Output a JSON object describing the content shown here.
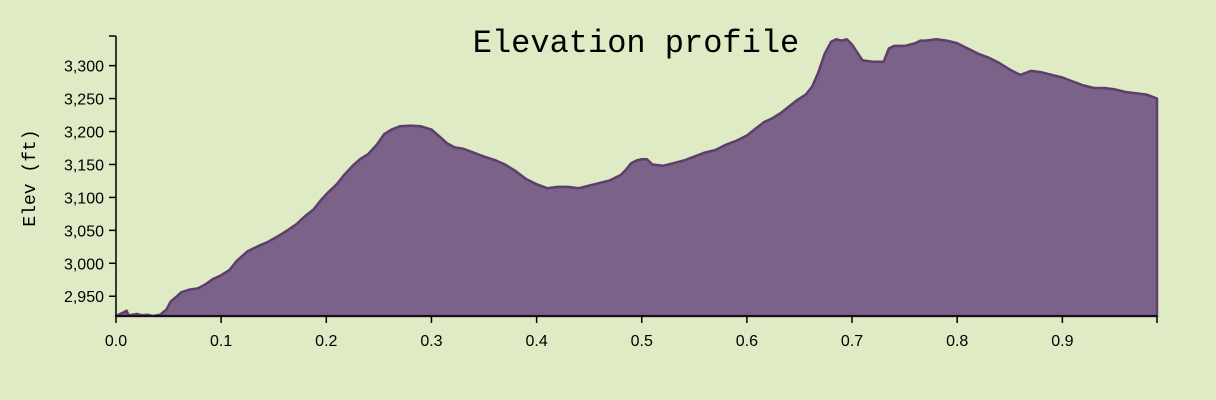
{
  "chart_data": {
    "type": "area",
    "title": "Elevation profile",
    "xlabel": "",
    "ylabel": "Elev (ft)",
    "xlim": [
      0,
      0.99
    ],
    "ylim": [
      2920,
      3345
    ],
    "x_ticks": [
      "0.0",
      "0.1",
      "0.2",
      "0.3",
      "0.4",
      "0.5",
      "0.6",
      "0.7",
      "0.8",
      "0.9"
    ],
    "y_ticks": [
      "2,950",
      "3,000",
      "3,050",
      "3,100",
      "3,150",
      "3,200",
      "3,250",
      "3,300"
    ],
    "grid": false,
    "fill_color": "#7b6289",
    "line_color": "#5c3f6b",
    "background_color": "#deebc4",
    "series": [
      {
        "x": [
          0.0,
          0.008,
          0.01,
          0.012,
          0.02,
          0.025,
          0.03,
          0.035,
          0.042,
          0.048,
          0.052,
          0.058,
          0.062,
          0.07,
          0.078,
          0.085,
          0.092,
          0.1,
          0.108,
          0.115,
          0.125,
          0.135,
          0.145,
          0.155,
          0.163,
          0.172,
          0.18,
          0.188,
          0.195,
          0.202,
          0.21,
          0.218,
          0.225,
          0.232,
          0.24,
          0.248,
          0.255,
          0.262,
          0.27,
          0.28,
          0.29,
          0.3,
          0.308,
          0.315,
          0.322,
          0.33,
          0.34,
          0.35,
          0.36,
          0.37,
          0.38,
          0.39,
          0.4,
          0.41,
          0.42,
          0.43,
          0.44,
          0.45,
          0.46,
          0.47,
          0.48,
          0.485,
          0.49,
          0.495,
          0.5,
          0.505,
          0.51,
          0.52,
          0.53,
          0.54,
          0.55,
          0.56,
          0.57,
          0.58,
          0.59,
          0.6,
          0.608,
          0.616,
          0.624,
          0.632,
          0.64,
          0.648,
          0.656,
          0.662,
          0.668,
          0.674,
          0.68,
          0.685,
          0.69,
          0.695,
          0.7,
          0.705,
          0.71,
          0.72,
          0.73,
          0.735,
          0.74,
          0.75,
          0.76,
          0.765,
          0.77,
          0.78,
          0.79,
          0.8,
          0.81,
          0.82,
          0.83,
          0.84,
          0.85,
          0.86,
          0.87,
          0.88,
          0.89,
          0.9,
          0.91,
          0.92,
          0.93,
          0.94,
          0.95,
          0.96,
          0.97,
          0.98,
          0.99
        ],
        "y": [
          2920,
          2926,
          2928,
          2921,
          2923,
          2921,
          2922,
          2920,
          2922,
          2930,
          2942,
          2950,
          2956,
          2960,
          2962,
          2968,
          2976,
          2982,
          2990,
          3004,
          3018,
          3026,
          3033,
          3042,
          3050,
          3060,
          3072,
          3082,
          3096,
          3108,
          3120,
          3136,
          3148,
          3158,
          3166,
          3180,
          3196,
          3203,
          3208,
          3209,
          3208,
          3203,
          3192,
          3182,
          3176,
          3174,
          3168,
          3162,
          3157,
          3150,
          3140,
          3128,
          3120,
          3114,
          3116,
          3116,
          3114,
          3118,
          3122,
          3126,
          3134,
          3142,
          3152,
          3156,
          3158,
          3158,
          3150,
          3148,
          3152,
          3156,
          3162,
          3168,
          3172,
          3180,
          3186,
          3194,
          3204,
          3214,
          3220,
          3228,
          3238,
          3248,
          3256,
          3268,
          3290,
          3318,
          3336,
          3340,
          3338,
          3340,
          3332,
          3320,
          3308,
          3306,
          3306,
          3326,
          3330,
          3330,
          3334,
          3338,
          3338,
          3340,
          3338,
          3334,
          3326,
          3318,
          3312,
          3304,
          3294,
          3286,
          3292,
          3290,
          3286,
          3282,
          3276,
          3270,
          3266,
          3266,
          3264,
          3260,
          3258,
          3256,
          3250
        ]
      }
    ]
  }
}
